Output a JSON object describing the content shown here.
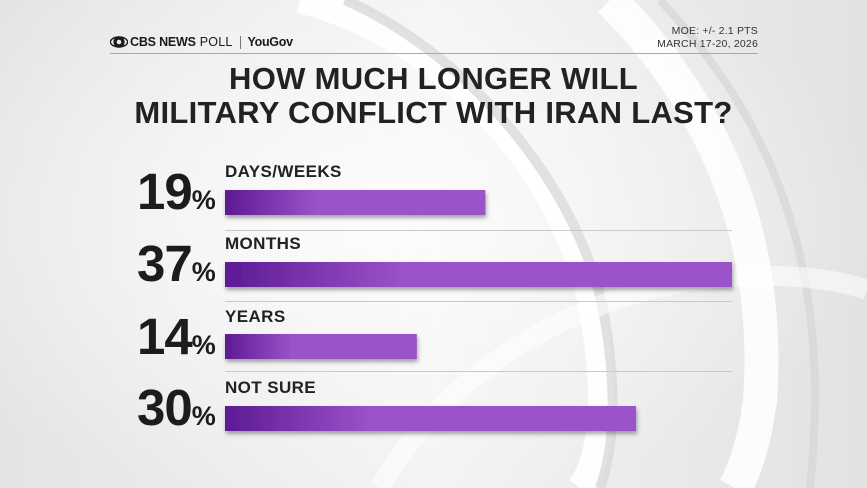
{
  "header": {
    "brand": "CBS NEWS",
    "poll": "POLL",
    "partner": "YouGov",
    "moe": "MOE: +/- 2.1 PTS",
    "dates": "MARCH 17-20, 2026"
  },
  "colors": {
    "bar_start": "#5d1a94",
    "bar_end": "#9a52c8",
    "text": "#222222"
  },
  "chart_data": {
    "type": "bar",
    "orientation": "horizontal",
    "title": "HOW MUCH LONGER WILL MILITARY CONFLICT WITH IRAN LAST?",
    "title_lines": [
      "HOW MUCH LONGER WILL",
      "MILITARY CONFLICT WITH IRAN LAST?"
    ],
    "categories": [
      "DAYS/WEEKS",
      "MONTHS",
      "YEARS",
      "NOT SURE"
    ],
    "values": [
      19,
      37,
      14,
      30
    ],
    "value_labels": [
      "19",
      "37",
      "14",
      "30"
    ],
    "unit": "%",
    "xlim": [
      0,
      37
    ],
    "xlabel": "",
    "ylabel": ""
  }
}
